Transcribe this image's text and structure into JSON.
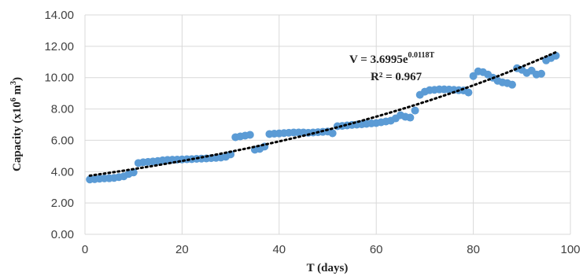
{
  "chart_data": {
    "type": "scatter",
    "xlabel": "T (days)",
    "ylabel_main": "Capacity (x10",
    "ylabel_sup": "6",
    "ylabel_end": " m",
    "ylabel_sup2": "3",
    "ylabel_close": ")",
    "xlim": [
      0,
      100
    ],
    "ylim": [
      0,
      14
    ],
    "x_ticks": [
      0,
      20,
      40,
      60,
      80,
      100
    ],
    "y_ticks": [
      "0.00",
      "2.00",
      "4.00",
      "6.00",
      "8.00",
      "10.00",
      "12.00",
      "14.00"
    ],
    "grid": "both",
    "marker_color": "#5b9bd5",
    "trendline_color": "#000000",
    "trendline": {
      "type": "exponential",
      "a": 3.6995,
      "b": 0.0118,
      "equation_main": "V = 3.6995e",
      "equation_exp": "0.0118T",
      "r2_label": "R² = 0.967"
    },
    "x": [
      1,
      2,
      3,
      4,
      5,
      6,
      7,
      8,
      9,
      10,
      11,
      12,
      13,
      14,
      15,
      16,
      17,
      18,
      19,
      20,
      21,
      22,
      23,
      24,
      25,
      26,
      27,
      28,
      29,
      30,
      31,
      32,
      33,
      34,
      35,
      36,
      37,
      38,
      39,
      40,
      41,
      42,
      43,
      44,
      45,
      46,
      47,
      48,
      49,
      50,
      51,
      52,
      53,
      54,
      55,
      56,
      57,
      58,
      59,
      60,
      61,
      62,
      63,
      64,
      65,
      66,
      67,
      68,
      69,
      70,
      71,
      72,
      73,
      74,
      75,
      76,
      77,
      78,
      79,
      80,
      81,
      82,
      83,
      84,
      85,
      86,
      87,
      88,
      89,
      90,
      91,
      92,
      93,
      94,
      95,
      96,
      97
    ],
    "values": [
      3.5,
      3.52,
      3.55,
      3.57,
      3.58,
      3.6,
      3.65,
      3.7,
      3.85,
      3.95,
      4.55,
      4.6,
      4.62,
      4.65,
      4.68,
      4.72,
      4.75,
      4.76,
      4.77,
      4.78,
      4.79,
      4.8,
      4.82,
      4.83,
      4.84,
      4.86,
      4.88,
      4.9,
      4.95,
      5.1,
      6.2,
      6.25,
      6.3,
      6.35,
      5.4,
      5.45,
      5.6,
      6.4,
      6.42,
      6.44,
      6.46,
      6.48,
      6.5,
      6.5,
      6.5,
      6.48,
      6.5,
      6.52,
      6.54,
      6.56,
      6.45,
      6.9,
      6.92,
      6.95,
      6.98,
      7.0,
      7.02,
      7.05,
      7.08,
      7.1,
      7.15,
      7.2,
      7.25,
      7.4,
      7.6,
      7.5,
      7.45,
      7.9,
      8.9,
      9.1,
      9.2,
      9.22,
      9.25,
      9.25,
      9.24,
      9.22,
      9.2,
      9.18,
      9.05,
      10.1,
      10.4,
      10.35,
      10.2,
      10.0,
      9.8,
      9.7,
      9.65,
      9.55,
      10.6,
      10.5,
      10.3,
      10.45,
      10.2,
      10.25,
      11.1,
      11.25,
      11.4
    ]
  }
}
